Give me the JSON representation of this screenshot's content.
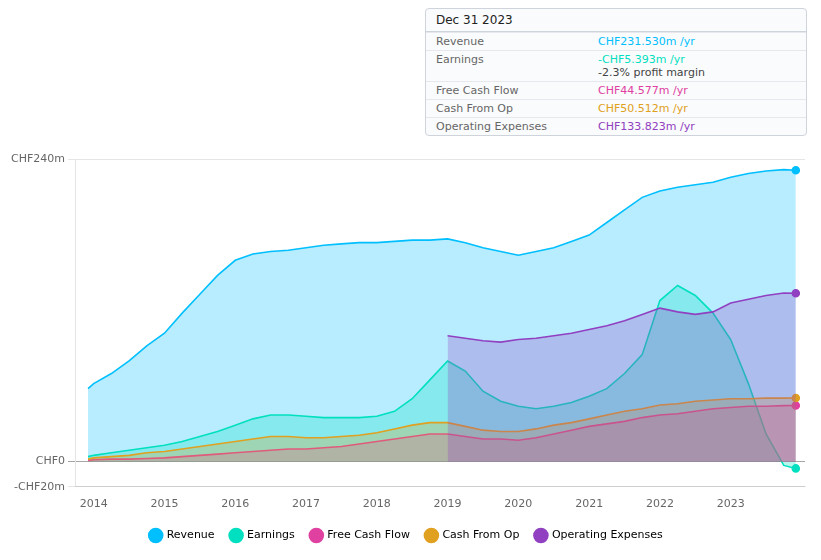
{
  "chart_data": {
    "type": "area",
    "x": [
      2013.92,
      2014.0,
      2014.25,
      2014.5,
      2014.75,
      2015.0,
      2015.25,
      2015.5,
      2015.75,
      2016.0,
      2016.25,
      2016.5,
      2016.75,
      2017.0,
      2017.25,
      2017.5,
      2017.75,
      2018.0,
      2018.25,
      2018.5,
      2018.75,
      2019.0,
      2019.25,
      2019.5,
      2019.75,
      2020.0,
      2020.25,
      2020.5,
      2020.75,
      2021.0,
      2021.25,
      2021.5,
      2021.75,
      2022.0,
      2022.25,
      2022.5,
      2022.75,
      2023.0,
      2023.25,
      2023.5,
      2023.75,
      2023.92
    ],
    "series": [
      {
        "name": "Revenue",
        "color": "#00bfff",
        "values": [
          58,
          62,
          70,
          80,
          92,
          102,
          118,
          133,
          148,
          160,
          165,
          167,
          168,
          170,
          172,
          173,
          174,
          174,
          175,
          176,
          176,
          177,
          174,
          170,
          167,
          164,
          167,
          170,
          175,
          180,
          190,
          200,
          210,
          215,
          218,
          220,
          222,
          226,
          229,
          231,
          232,
          231.53
        ]
      },
      {
        "name": "Earnings",
        "color": "#00e0c0",
        "values": [
          4,
          5,
          7,
          9,
          11,
          13,
          16,
          20,
          24,
          29,
          34,
          37,
          37,
          36,
          35,
          35,
          35,
          36,
          40,
          50,
          65,
          80,
          72,
          56,
          48,
          44,
          42,
          44,
          47,
          52,
          58,
          70,
          85,
          128,
          140,
          132,
          118,
          97,
          62,
          22,
          -3,
          -5.393
        ]
      },
      {
        "name": "Free Cash Flow",
        "color": "#e040a0",
        "values": [
          1,
          1.5,
          2,
          2,
          2.5,
          3,
          4,
          5,
          6,
          7,
          8,
          9,
          10,
          10,
          11,
          12,
          14,
          16,
          18,
          20,
          22,
          22,
          20,
          18,
          18,
          17,
          19,
          22,
          25,
          28,
          30,
          32,
          35,
          37,
          38,
          40,
          42,
          43,
          44,
          44,
          44.5,
          44.577
        ]
      },
      {
        "name": "Cash From Op",
        "color": "#e0a020",
        "values": [
          2,
          3,
          4,
          5,
          7,
          8,
          10,
          12,
          14,
          16,
          18,
          20,
          20,
          19,
          19,
          20,
          21,
          23,
          26,
          29,
          31,
          31,
          28,
          25,
          24,
          24,
          26,
          29,
          31,
          34,
          37,
          40,
          42,
          45,
          46,
          48,
          49,
          50,
          50,
          50.5,
          50.5,
          50.512
        ]
      },
      {
        "name": "Operating Expenses",
        "color": "#9040c0",
        "values": [
          null,
          null,
          null,
          null,
          null,
          null,
          null,
          null,
          null,
          null,
          null,
          null,
          null,
          null,
          null,
          null,
          null,
          null,
          null,
          null,
          null,
          100,
          98,
          96,
          95,
          97,
          98,
          100,
          102,
          105,
          108,
          112,
          117,
          122,
          119,
          117,
          119,
          126,
          129,
          132,
          134,
          133.823
        ]
      }
    ],
    "xlim": [
      2013.75,
      2024.05
    ],
    "xticks": [
      2014,
      2015,
      2016,
      2017,
      2018,
      2019,
      2020,
      2021,
      2022,
      2023
    ],
    "ylim": [
      -20,
      240
    ],
    "yticks": [
      {
        "value": -20,
        "label": "-CHF20m"
      },
      {
        "value": 0,
        "label": "CHF0"
      },
      {
        "value": 240,
        "label": "CHF240m"
      }
    ],
    "grid": true,
    "legend": "bottom",
    "annotations": [
      [
        "Dec 31 2023"
      ],
      [
        "Revenue",
        "CHF231.530m /yr"
      ],
      [
        "Earnings",
        "-CHF5.393m /yr",
        "-2.3% profit margin"
      ],
      [
        "Free Cash Flow",
        "CHF44.577m /yr"
      ],
      [
        "Cash From Op",
        "CHF50.512m /yr"
      ],
      [
        "Operating Expenses",
        "CHF133.823m /yr"
      ]
    ]
  }
}
